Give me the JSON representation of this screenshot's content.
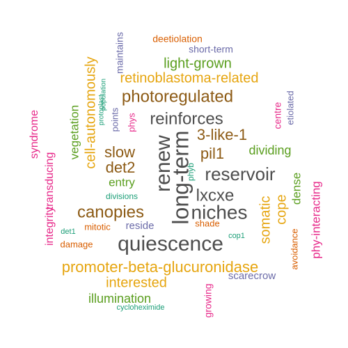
{
  "word_cloud": {
    "words": [
      {
        "text": "long-term",
        "color": "#4d4d4d"
      },
      {
        "text": "renew",
        "color": "#4d4d4d"
      },
      {
        "text": "quiescence",
        "color": "#4d4d4d"
      },
      {
        "text": "niches",
        "color": "#4d4d4d"
      },
      {
        "text": "reservoir",
        "color": "#4d4d4d"
      },
      {
        "text": "reinforces",
        "color": "#4d4d4d"
      },
      {
        "text": "lxcxe",
        "color": "#4d4d4d"
      },
      {
        "text": "photoregulated",
        "color": "#8c5a14"
      },
      {
        "text": "canopies",
        "color": "#8c5a14"
      },
      {
        "text": "3-like-1",
        "color": "#8c5a14"
      },
      {
        "text": "pil1",
        "color": "#8c5a14"
      },
      {
        "text": "det2",
        "color": "#8c5a14"
      },
      {
        "text": "slow",
        "color": "#8c5a14"
      },
      {
        "text": "promoter-beta-glucuronidase",
        "color": "#e6a50f"
      },
      {
        "text": "retinoblastoma-related",
        "color": "#e6a50f"
      },
      {
        "text": "cell-autonomously",
        "color": "#e6a50f"
      },
      {
        "text": "interested",
        "color": "#e6a50f"
      },
      {
        "text": "somatic",
        "color": "#e6a50f"
      },
      {
        "text": "cope",
        "color": "#e6a50f"
      },
      {
        "text": "light-grown",
        "color": "#5a9e1e"
      },
      {
        "text": "illumination",
        "color": "#5a9e1e"
      },
      {
        "text": "dividing",
        "color": "#5a9e1e"
      },
      {
        "text": "entry",
        "color": "#5a9e1e"
      },
      {
        "text": "dense",
        "color": "#5a9e1e"
      },
      {
        "text": "vegetation",
        "color": "#5a9e1e"
      },
      {
        "text": "phy-interacting",
        "color": "#e7298a"
      },
      {
        "text": "syndrome",
        "color": "#e7298a"
      },
      {
        "text": "transducing",
        "color": "#e7298a"
      },
      {
        "text": "integrity",
        "color": "#e7298a"
      },
      {
        "text": "centre",
        "color": "#e7298a"
      },
      {
        "text": "growing",
        "color": "#e7298a"
      },
      {
        "text": "phys",
        "color": "#e7298a"
      },
      {
        "text": "scarecrow",
        "color": "#6a6aa8"
      },
      {
        "text": "reside",
        "color": "#6a6aa8"
      },
      {
        "text": "maintains",
        "color": "#6a6aa8"
      },
      {
        "text": "short-term",
        "color": "#6a6aa8"
      },
      {
        "text": "points",
        "color": "#6a6aa8"
      },
      {
        "text": "etiolated",
        "color": "#6a6aa8"
      },
      {
        "text": "deetiolation",
        "color": "#d95f02"
      },
      {
        "text": "mitotic",
        "color": "#d95f02"
      },
      {
        "text": "damage",
        "color": "#d95f02"
      },
      {
        "text": "shade",
        "color": "#d95f02"
      },
      {
        "text": "avoidance",
        "color": "#d95f02"
      },
      {
        "text": "phyb",
        "color": "#1b9e77"
      },
      {
        "text": "divisions",
        "color": "#1b9e77"
      },
      {
        "text": "det1",
        "color": "#1b9e77"
      },
      {
        "text": "cop1",
        "color": "#1b9e77"
      },
      {
        "text": "population",
        "color": "#1b9e77"
      },
      {
        "text": "protoplast",
        "color": "#1b9e77"
      },
      {
        "text": "cycloheximide",
        "color": "#1b9e77"
      }
    ]
  }
}
